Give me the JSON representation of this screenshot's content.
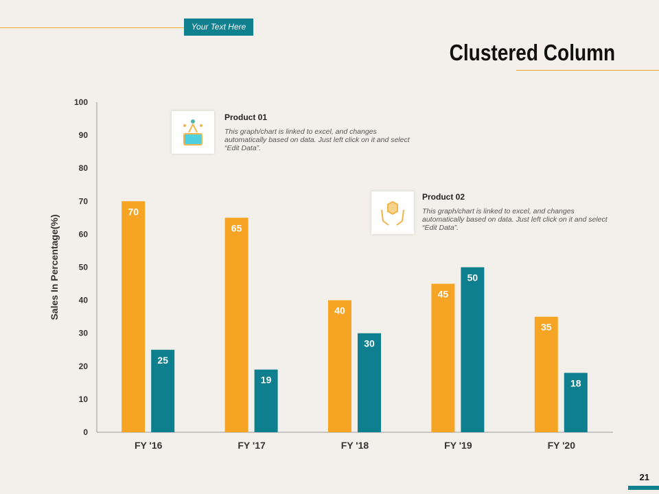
{
  "header": {
    "tag": "Your Text Here",
    "title": "Clustered Column"
  },
  "annotations": [
    {
      "title": "Product 01",
      "text": "This graph/chart is linked to excel, and changes automatically based on data. Just left click on it and select “Edit Data”.",
      "icon": "gift-box-icon"
    },
    {
      "title": "Product 02",
      "text": "This graph/chart is linked to excel, and changes automatically based on data. Just left click on it and select “Edit Data”.",
      "icon": "hands-holding-box-icon"
    }
  ],
  "page_number": "21",
  "chart_data": {
    "type": "bar",
    "title": "Clustered Column",
    "categories": [
      "FY '16",
      "FY '17",
      "FY '18",
      "FY '19",
      "FY '20"
    ],
    "series": [
      {
        "name": "Product 01",
        "color": "#f6a424",
        "values": [
          70,
          65,
          40,
          45,
          35
        ]
      },
      {
        "name": "Product 02",
        "color": "#0e7f8e",
        "values": [
          25,
          19,
          30,
          50,
          18
        ]
      }
    ],
    "xlabel": "",
    "ylabel": "Sales In Percentage(%)",
    "ylim": [
      0,
      100
    ],
    "yticks": [
      0,
      10,
      20,
      30,
      40,
      50,
      60,
      70,
      80,
      90,
      100
    ],
    "grid": false
  }
}
